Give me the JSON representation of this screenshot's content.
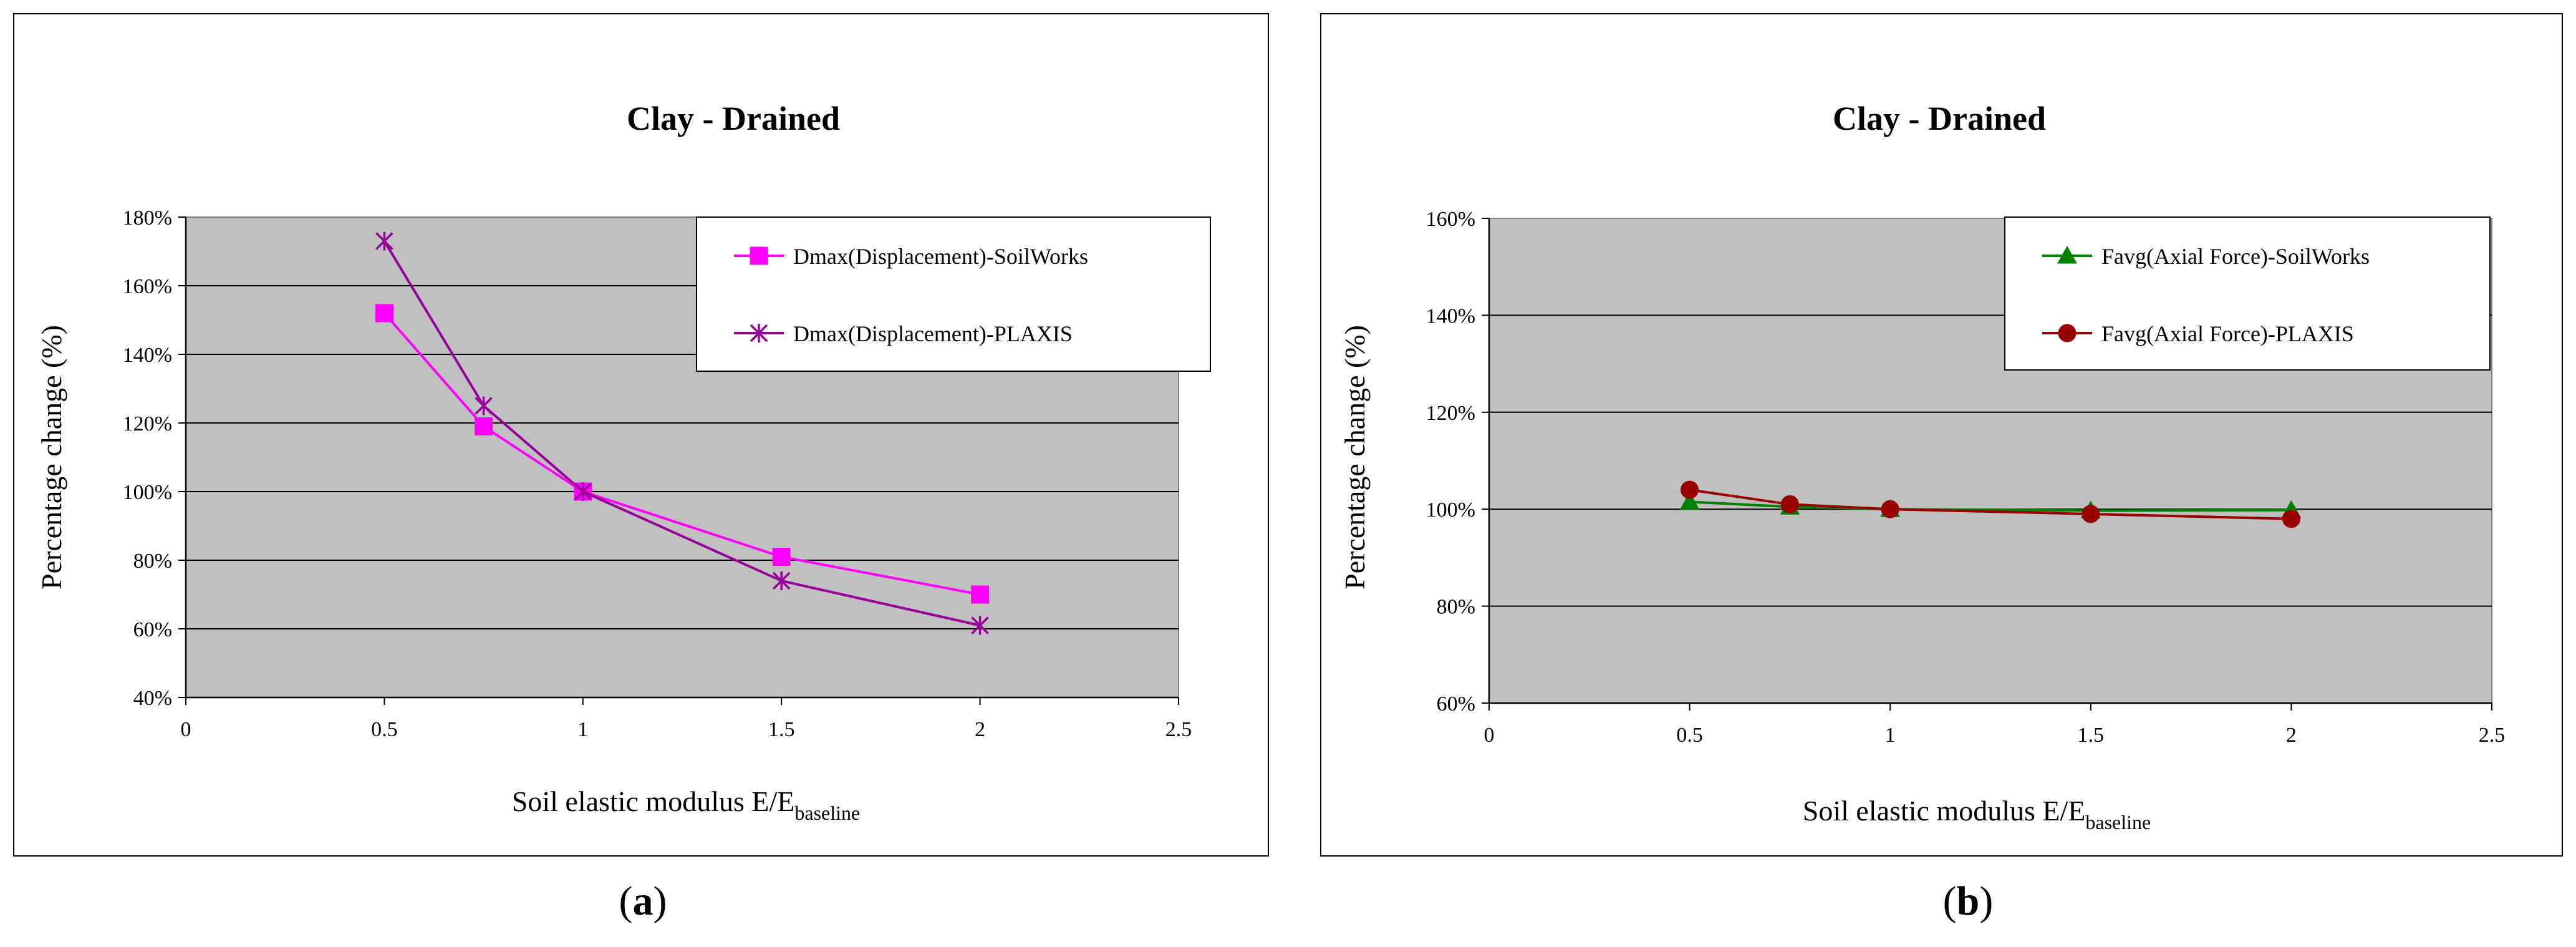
{
  "panels": [
    {
      "panel_label_letter": "a",
      "legend_symbols": [
        "square",
        "asterisk"
      ],
      "colors": {
        "plot_bg": "#c0c0c0",
        "series": [
          "#ff00ff",
          "#990099"
        ]
      },
      "chart_data": {
        "type": "line",
        "title": "Clay - Drained",
        "xlabel_main": "Soil elastic modulus  E/E",
        "xlabel_sub": "baseline",
        "ylabel": "Percentage  change    (%)",
        "xlim": [
          0,
          2.5
        ],
        "ylim": [
          40,
          180
        ],
        "x_ticks": [
          "0",
          "0.5",
          "1",
          "1.5",
          "2",
          "2.5"
        ],
        "y_ticks": [
          "40%",
          "60%",
          "80%",
          "100%",
          "120%",
          "140%",
          "160%",
          "180%"
        ],
        "grid": true,
        "legend_position": "top-right",
        "series": [
          {
            "name": "Dmax(Displacement)-SoilWorks",
            "x": [
              0.5,
              0.75,
              1,
              1.5,
              2
            ],
            "values": [
              152,
              119,
              100,
              81,
              70
            ]
          },
          {
            "name": "Dmax(Displacement)-PLAXIS",
            "x": [
              0.5,
              0.75,
              1,
              1.5,
              2
            ],
            "values": [
              173,
              125,
              100,
              74,
              61
            ]
          }
        ]
      }
    },
    {
      "panel_label_letter": "b",
      "legend_symbols": [
        "triangle",
        "circle"
      ],
      "colors": {
        "plot_bg": "#c0c0c0",
        "series": [
          "#008000",
          "#990000"
        ]
      },
      "chart_data": {
        "type": "line",
        "title": "Clay - Drained",
        "xlabel_main": "Soil elastic modulus  E/E",
        "xlabel_sub": "baseline",
        "ylabel": "Percentage  change    (%)",
        "xlim": [
          0,
          2.5
        ],
        "ylim": [
          60,
          160
        ],
        "x_ticks": [
          "0",
          "0.5",
          "1",
          "1.5",
          "2",
          "2.5"
        ],
        "y_ticks": [
          "60%",
          "80%",
          "100%",
          "120%",
          "140%",
          "160%"
        ],
        "grid": true,
        "legend_position": "top-right",
        "series": [
          {
            "name": "Favg(Axial Force)-SoilWorks",
            "x": [
              0.5,
              0.75,
              1,
              1.5,
              2
            ],
            "values": [
              101.5,
              100.5,
              100,
              99.7,
              99.8
            ]
          },
          {
            "name": "Favg(Axial Force)-PLAXIS",
            "x": [
              0.5,
              0.75,
              1,
              1.5,
              2
            ],
            "values": [
              104,
              101,
              100,
              99,
              98
            ]
          }
        ]
      }
    }
  ]
}
